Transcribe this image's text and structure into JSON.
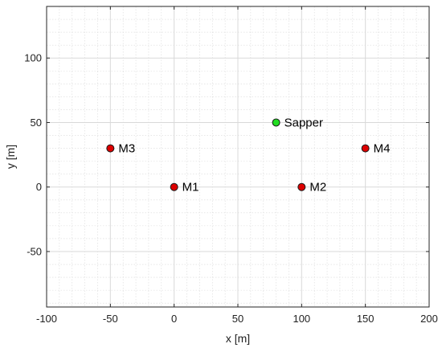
{
  "chart_data": {
    "type": "scatter",
    "title": "",
    "xlabel": "x [m]",
    "ylabel": "y [m]",
    "xlim": [
      -100,
      200
    ],
    "ylim": [
      -93,
      140
    ],
    "xticks": [
      -100,
      -50,
      0,
      50,
      100,
      150,
      200
    ],
    "yticks": [
      -50,
      0,
      50,
      100
    ],
    "x_minor_step": 10,
    "y_minor_step": 10,
    "grid": true,
    "minor_grid": true,
    "points": [
      {
        "label": "M1",
        "x": 0,
        "y": 0,
        "color": "#dd0000"
      },
      {
        "label": "M2",
        "x": 100,
        "y": 0,
        "color": "#dd0000"
      },
      {
        "label": "M3",
        "x": -50,
        "y": 30,
        "color": "#dd0000"
      },
      {
        "label": "M4",
        "x": 150,
        "y": 30,
        "color": "#dd0000"
      },
      {
        "label": "Sapper",
        "x": 80,
        "y": 50,
        "color": "#22dd22"
      }
    ]
  }
}
